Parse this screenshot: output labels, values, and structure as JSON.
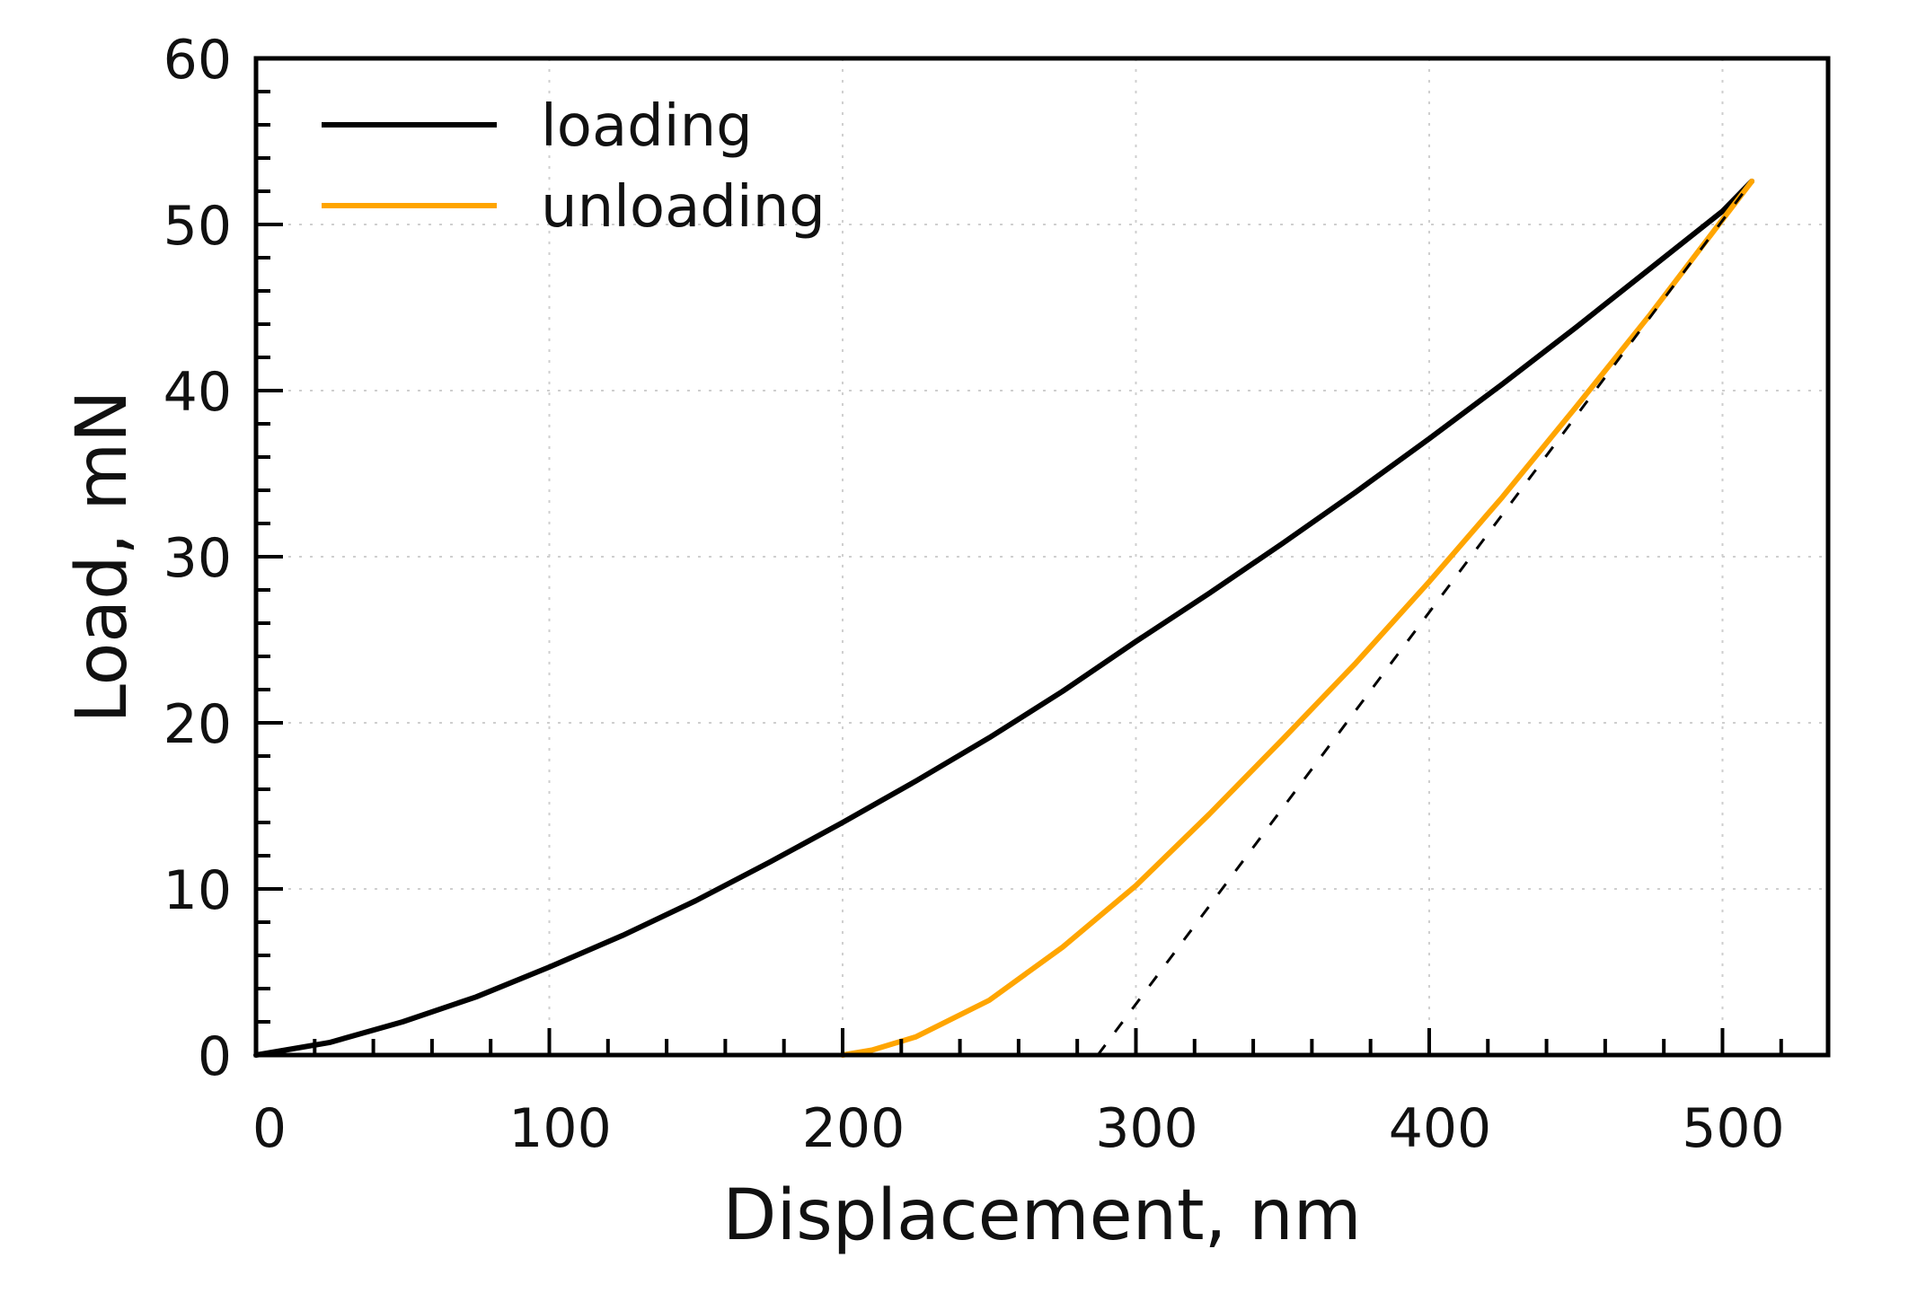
{
  "chart_data": {
    "type": "line",
    "title": "",
    "xlabel": "Displacement, nm",
    "ylabel": "Load, mN",
    "xlim": [
      0,
      536
    ],
    "ylim": [
      0,
      60
    ],
    "x_ticks": [
      0,
      100,
      200,
      300,
      400,
      500
    ],
    "x_tick_labels": [
      "0",
      "100",
      "200",
      "300",
      "400",
      "500"
    ],
    "x_minor_step": 20,
    "y_ticks": [
      0,
      10,
      20,
      30,
      40,
      50,
      60
    ],
    "y_tick_labels": [
      "0",
      "10",
      "20",
      "30",
      "40",
      "50",
      "60"
    ],
    "y_minor_step": 2,
    "grid": true,
    "grid_style": "dotted",
    "legend_position": "upper left",
    "series": [
      {
        "name": "loading",
        "color": "#000000",
        "style": "solid",
        "x": [
          0,
          25,
          50,
          75,
          100,
          125,
          150,
          175,
          200,
          225,
          250,
          275,
          300,
          325,
          350,
          375,
          400,
          425,
          450,
          475,
          500,
          510
        ],
        "y": [
          0,
          0.75,
          2.0,
          3.5,
          5.3,
          7.2,
          9.3,
          11.6,
          14.0,
          16.5,
          19.1,
          21.9,
          24.9,
          27.8,
          30.8,
          33.9,
          37.1,
          40.4,
          43.8,
          47.3,
          50.8,
          52.6
        ]
      },
      {
        "name": "unloading",
        "color": "#FFA500",
        "style": "solid",
        "x": [
          510,
          500,
          475,
          450,
          425,
          400,
          375,
          350,
          325,
          300,
          275,
          250,
          225,
          210,
          200
        ],
        "y": [
          52.6,
          50.3,
          44.5,
          39.0,
          33.6,
          28.5,
          23.6,
          19.0,
          14.5,
          10.2,
          6.5,
          3.3,
          1.1,
          0.3,
          0
        ]
      },
      {
        "name": "tangent-fit",
        "color": "#000000",
        "style": "dashed",
        "show_in_legend": false,
        "x": [
          287,
          510
        ],
        "y": [
          0,
          52.6
        ]
      }
    ]
  },
  "legend": {
    "items": [
      {
        "label": "loading",
        "color": "#000000"
      },
      {
        "label": "unloading",
        "color": "#FFA500"
      }
    ]
  }
}
